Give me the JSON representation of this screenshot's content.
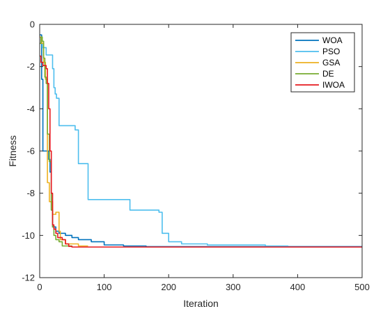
{
  "chart_data": {
    "type": "line",
    "xlabel": "Iteration",
    "ylabel": "Fitness",
    "xlim": [
      0,
      500
    ],
    "ylim": [
      -12,
      0
    ],
    "xticks": [
      0,
      100,
      200,
      300,
      400,
      500
    ],
    "yticks": [
      0,
      -2,
      -4,
      -6,
      -8,
      -10,
      -12
    ],
    "grid": false,
    "legend_position": "top-right",
    "series": [
      {
        "name": "WOA",
        "color": "#0072BD",
        "step": true,
        "x": [
          0,
          3,
          5,
          12,
          14,
          16,
          18,
          20,
          25,
          30,
          40,
          50,
          60,
          80,
          100,
          130,
          165,
          500
        ],
        "y": [
          -0.5,
          -2.6,
          -6.0,
          -6.0,
          -6.4,
          -7.0,
          -8.8,
          -9.6,
          -9.8,
          -9.9,
          -10.0,
          -10.1,
          -10.2,
          -10.3,
          -10.45,
          -10.5,
          -10.53,
          -10.53
        ]
      },
      {
        "name": "PSO",
        "color": "#4DBEEE",
        "step": true,
        "x": [
          0,
          4,
          10,
          20,
          22,
          24,
          26,
          30,
          40,
          55,
          60,
          73,
          75,
          135,
          140,
          185,
          190,
          200,
          220,
          260,
          350,
          385
        ],
        "y": [
          -0.9,
          -1.1,
          -1.45,
          -2.1,
          -3.0,
          -3.3,
          -3.5,
          -4.8,
          -4.8,
          -5.0,
          -6.6,
          -6.6,
          -8.3,
          -8.3,
          -8.8,
          -8.9,
          -9.9,
          -10.3,
          -10.4,
          -10.45,
          -10.5,
          -10.52
        ]
      },
      {
        "name": "GSA",
        "color": "#EDB120",
        "step": true,
        "x": [
          0,
          3,
          6,
          9,
          12,
          15,
          18,
          20,
          25,
          30,
          32,
          40,
          60,
          75
        ],
        "y": [
          -0.6,
          -0.9,
          -1.8,
          -2.6,
          -7.5,
          -8.4,
          -8.4,
          -9.0,
          -8.9,
          -9.8,
          -10.2,
          -10.4,
          -10.5,
          -10.5
        ]
      },
      {
        "name": "DE",
        "color": "#77AC30",
        "step": true,
        "x": [
          0,
          2,
          4,
          6,
          8,
          10,
          12,
          15,
          18,
          20,
          22,
          25,
          30,
          35,
          50
        ],
        "y": [
          -0.9,
          -0.6,
          -0.8,
          -1.6,
          -2.5,
          -2.8,
          -5.2,
          -6.5,
          -8.8,
          -9.6,
          -10.0,
          -10.2,
          -10.3,
          -10.5,
          -10.55
        ]
      },
      {
        "name": "IWOA",
        "color": "#E6191E",
        "step": true,
        "x": [
          0,
          2,
          5,
          10,
          12,
          14,
          16,
          18,
          20,
          22,
          25,
          28,
          35,
          40,
          45,
          50,
          500
        ],
        "y": [
          -1.5,
          -1.8,
          -1.95,
          -2.1,
          -2.8,
          -4.0,
          -6.0,
          -8.0,
          -9.5,
          -9.7,
          -9.9,
          -10.1,
          -10.2,
          -10.4,
          -10.52,
          -10.55,
          -10.55
        ]
      }
    ]
  }
}
